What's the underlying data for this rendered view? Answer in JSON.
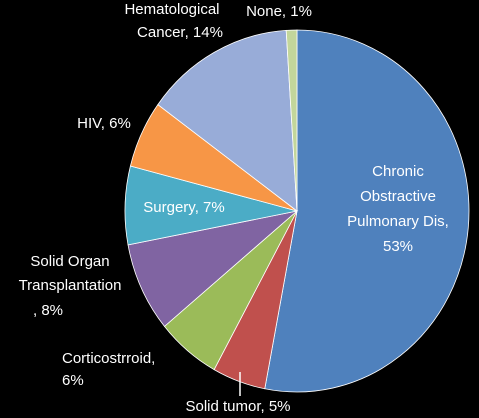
{
  "chart_data": {
    "type": "pie",
    "values": [
      53,
      5,
      6,
      8,
      7,
      6,
      14,
      1
    ],
    "value_labels": [
      [
        "Chronic",
        "Obstractive",
        "Pulmonary Dis,",
        "53%"
      ],
      [
        "Solid tumor, 5%"
      ],
      [
        "Corticostrroid,",
        "6%"
      ],
      [
        "Solid Organ",
        "Transplantation",
        ", 8%"
      ],
      [
        "Surgery, 7%"
      ],
      [
        "HIV, 6%"
      ],
      [
        "Hematological",
        "Cancer, 14%"
      ],
      [
        "None, 1%"
      ]
    ],
    "colors": [
      "#4f81bd",
      "#c0504d",
      "#9bbb59",
      "#8064a2",
      "#4bacc6",
      "#f79646",
      "#98acd8",
      "#c3d69b"
    ]
  }
}
